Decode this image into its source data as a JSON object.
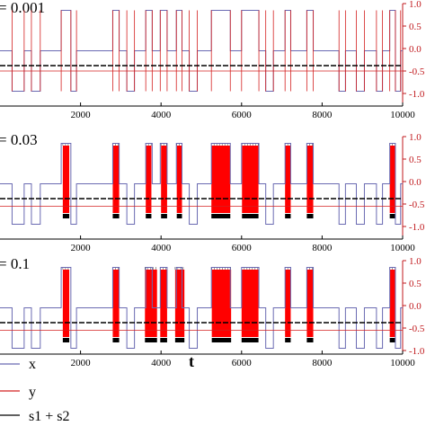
{
  "figure": {
    "xlabel": "t",
    "legend": [
      "x",
      "y",
      "s1 + s2"
    ],
    "colors": {
      "x": "#6a6ab2",
      "y": "#d42020",
      "s": "#000000",
      "fill": "#ff0000",
      "axis": "#c0181c"
    }
  },
  "chart_data": [
    {
      "type": "line",
      "title": "= 0.001",
      "x_ticks": [
        2000,
        4000,
        6000,
        8000,
        10000
      ],
      "xlim": [
        0,
        10000
      ],
      "right_yticks": [
        "-1.0",
        "-0.5",
        "0.0",
        "0.5",
        "1.0"
      ],
      "ylim": [
        -1.0,
        1.0
      ],
      "burst_intervals": [],
      "series": [
        {
          "name": "x",
          "style": "switching square wave, levels -0.95 / -0.05 / +0.85"
        },
        {
          "name": "y",
          "style": "thin spikes at x transitions"
        },
        {
          "name": "s1 + s2",
          "level": -0.38
        }
      ]
    },
    {
      "type": "line",
      "title": "= 0.03",
      "x_ticks": [
        2000,
        4000,
        6000,
        8000,
        10000
      ],
      "xlim": [
        0,
        10000
      ],
      "right_yticks": [
        "-1.0",
        "-0.5",
        "0.0",
        "0.5",
        "1.0"
      ],
      "ylim": [
        -1.0,
        1.0
      ],
      "burst_intervals": [
        [
          1560,
          1720
        ],
        [
          2800,
          2960
        ],
        [
          3620,
          3760
        ],
        [
          4000,
          4150
        ],
        [
          4390,
          4520
        ],
        [
          5250,
          5720
        ],
        [
          6010,
          6420
        ],
        [
          7080,
          7220
        ],
        [
          7620,
          7780
        ],
        [
          9680,
          9820
        ]
      ],
      "series": [
        {
          "name": "x",
          "style": "switching square wave, levels -0.95 / -0.05 / +0.85"
        },
        {
          "name": "y",
          "style": "dense oscillation between -0.7 and +0.8 in burst intervals"
        },
        {
          "name": "s1 + s2",
          "level": -0.38
        }
      ]
    },
    {
      "type": "line",
      "title": "= 0.1",
      "x_ticks": [
        2000,
        4000,
        6000,
        8000,
        10000
      ],
      "xlim": [
        0,
        10000
      ],
      "right_yticks": [
        "-1.0",
        "-0.5",
        "0.0",
        "0.5",
        "1.0"
      ],
      "ylim": [
        -1.0,
        1.0
      ],
      "burst_intervals": [
        [
          1560,
          1720
        ],
        [
          2800,
          2960
        ],
        [
          3600,
          3900
        ],
        [
          3980,
          4150
        ],
        [
          4350,
          4580
        ],
        [
          5260,
          5740
        ],
        [
          6000,
          6420
        ],
        [
          7080,
          7220
        ],
        [
          7620,
          7780
        ],
        [
          9680,
          9820
        ]
      ],
      "series": [
        {
          "name": "x",
          "style": "switching square wave, levels -0.95 / -0.05 / +0.85"
        },
        {
          "name": "y",
          "style": "dense oscillation between -0.7 and +0.8 in burst intervals"
        },
        {
          "name": "s1 + s2",
          "level": -0.38
        }
      ]
    }
  ],
  "x_wave_segments": [
    [
      0,
      -0.05
    ],
    [
      300,
      -0.95
    ],
    [
      600,
      -0.05
    ],
    [
      780,
      -0.95
    ],
    [
      1000,
      -0.05
    ],
    [
      1520,
      0.85
    ],
    [
      1760,
      -0.95
    ],
    [
      1900,
      -0.05
    ],
    [
      2800,
      0.85
    ],
    [
      2960,
      -0.05
    ],
    [
      3150,
      -0.95
    ],
    [
      3340,
      -0.05
    ],
    [
      3620,
      0.85
    ],
    [
      3780,
      -0.05
    ],
    [
      3980,
      0.85
    ],
    [
      4150,
      -0.05
    ],
    [
      4380,
      0.85
    ],
    [
      4520,
      -0.05
    ],
    [
      4700,
      -0.95
    ],
    [
      4900,
      -0.05
    ],
    [
      5250,
      0.85
    ],
    [
      5720,
      -0.05
    ],
    [
      6000,
      0.85
    ],
    [
      6430,
      -0.05
    ],
    [
      6600,
      -0.95
    ],
    [
      6790,
      -0.05
    ],
    [
      7080,
      0.85
    ],
    [
      7220,
      -0.05
    ],
    [
      7620,
      0.85
    ],
    [
      7780,
      -0.05
    ],
    [
      8420,
      -0.95
    ],
    [
      8580,
      -0.05
    ],
    [
      8850,
      -0.95
    ],
    [
      9050,
      -0.05
    ],
    [
      9350,
      -0.95
    ],
    [
      9500,
      -0.05
    ],
    [
      9680,
      0.85
    ],
    [
      9820,
      -0.95
    ],
    [
      9950,
      -0.05
    ]
  ]
}
